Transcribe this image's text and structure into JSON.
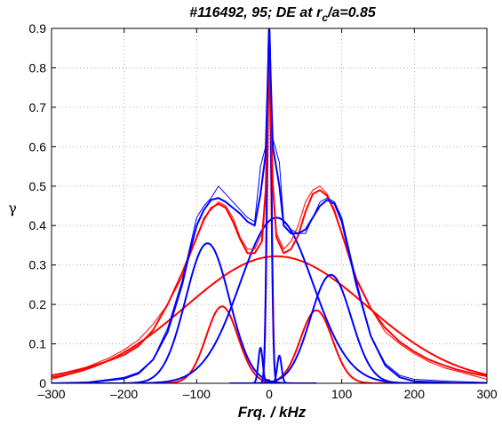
{
  "chart_data": {
    "type": "line",
    "title": "#116492, 95; DE at r",
    "title_sub": "c",
    "title_tail": "/a=0.85",
    "xlabel": "Frq. / kHz",
    "ylabel": "γ",
    "xlim": [
      -300,
      300
    ],
    "ylim": [
      0,
      0.9
    ],
    "grid": true,
    "x_ticks": [
      -300,
      -200,
      -100,
      0,
      100,
      200,
      300
    ],
    "x_tick_labels": [
      "–300",
      "–200",
      "–100",
      "0",
      "100",
      "200",
      "300"
    ],
    "y_ticks": [
      0,
      0.1,
      0.2,
      0.3,
      0.4,
      0.5,
      0.6,
      0.7,
      0.8,
      0.9
    ],
    "y_tick_labels": [
      "0",
      "0.1",
      "0.2",
      "0.3",
      "0.4",
      "0.5",
      "0.6",
      "0.7",
      "0.8",
      "0.9"
    ],
    "colors": {
      "red": "#ff0000",
      "blue": "#0000ff"
    },
    "gaussian_components": [
      {
        "color": "red",
        "amp": 0.322,
        "center": 10,
        "sigma": 125
      },
      {
        "color": "red",
        "amp": 0.195,
        "center": -65,
        "sigma": 22
      },
      {
        "color": "red",
        "amp": 0.185,
        "center": 65,
        "sigma": 22
      },
      {
        "color": "red",
        "amp": 0.79,
        "center": 0,
        "sigma": 3
      },
      {
        "color": "blue",
        "amp": 0.42,
        "center": 10,
        "sigma": 50
      },
      {
        "color": "blue",
        "amp": 0.355,
        "center": -85,
        "sigma": 30
      },
      {
        "color": "blue",
        "amp": 0.275,
        "center": 85,
        "sigma": 28
      },
      {
        "color": "blue",
        "amp": 0.9,
        "center": 0,
        "sigma": 3
      },
      {
        "color": "blue",
        "amp": 0.09,
        "center": -12,
        "sigma": 3
      },
      {
        "color": "blue",
        "amp": 0.07,
        "center": 14,
        "sigma": 3
      }
    ],
    "series": [
      {
        "color": "red",
        "kind": "fit",
        "x": [
          -300,
          -280,
          -260,
          -240,
          -220,
          -200,
          -180,
          -160,
          -140,
          -120,
          -100,
          -90,
          -80,
          -70,
          -60,
          -50,
          -40,
          -30,
          -20,
          -10,
          -5,
          0,
          5,
          10,
          20,
          30,
          40,
          50,
          60,
          70,
          80,
          90,
          100,
          120,
          140,
          160,
          180,
          200,
          220,
          240,
          260,
          280,
          300
        ],
        "y": [
          0.02,
          0.027,
          0.036,
          0.046,
          0.058,
          0.072,
          0.095,
          0.135,
          0.2,
          0.28,
          0.37,
          0.415,
          0.445,
          0.455,
          0.445,
          0.41,
          0.365,
          0.33,
          0.33,
          0.36,
          0.48,
          0.84,
          0.5,
          0.37,
          0.33,
          0.34,
          0.375,
          0.435,
          0.48,
          0.49,
          0.475,
          0.435,
          0.38,
          0.265,
          0.19,
          0.14,
          0.105,
          0.08,
          0.06,
          0.046,
          0.034,
          0.025,
          0.018
        ]
      },
      {
        "color": "red",
        "kind": "measured",
        "x": [
          -300,
          -280,
          -260,
          -240,
          -220,
          -200,
          -180,
          -160,
          -140,
          -120,
          -100,
          -90,
          -80,
          -70,
          -60,
          -50,
          -40,
          -30,
          -20,
          -10,
          -5,
          0,
          5,
          10,
          20,
          30,
          40,
          50,
          60,
          70,
          80,
          90,
          100,
          120,
          140,
          160,
          180,
          200,
          220,
          240,
          260,
          280,
          300
        ],
        "y": [
          0.01,
          0.02,
          0.035,
          0.05,
          0.065,
          0.085,
          0.11,
          0.15,
          0.2,
          0.27,
          0.37,
          0.42,
          0.44,
          0.46,
          0.45,
          0.42,
          0.37,
          0.34,
          0.34,
          0.38,
          0.5,
          0.86,
          0.52,
          0.38,
          0.34,
          0.36,
          0.4,
          0.46,
          0.49,
          0.5,
          0.48,
          0.44,
          0.38,
          0.26,
          0.19,
          0.13,
          0.1,
          0.075,
          0.055,
          0.04,
          0.03,
          0.02,
          0.01
        ]
      },
      {
        "color": "blue",
        "kind": "fit",
        "x": [
          -300,
          -250,
          -200,
          -180,
          -160,
          -140,
          -120,
          -110,
          -100,
          -90,
          -80,
          -70,
          -60,
          -50,
          -40,
          -30,
          -20,
          -12,
          -5,
          0,
          5,
          14,
          20,
          30,
          40,
          50,
          60,
          70,
          80,
          90,
          100,
          110,
          120,
          140,
          160,
          180,
          200,
          250,
          300
        ],
        "y": [
          0,
          0.002,
          0.012,
          0.025,
          0.06,
          0.13,
          0.25,
          0.33,
          0.4,
          0.44,
          0.465,
          0.47,
          0.46,
          0.445,
          0.43,
          0.41,
          0.4,
          0.48,
          0.58,
          0.9,
          0.6,
          0.5,
          0.4,
          0.38,
          0.38,
          0.39,
          0.42,
          0.45,
          0.465,
          0.455,
          0.41,
          0.33,
          0.25,
          0.12,
          0.045,
          0.015,
          0.005,
          0.001,
          0
        ]
      },
      {
        "color": "blue",
        "kind": "measured",
        "x": [
          -300,
          -250,
          -200,
          -180,
          -160,
          -140,
          -120,
          -110,
          -100,
          -90,
          -80,
          -70,
          -60,
          -50,
          -40,
          -30,
          -20,
          -12,
          -5,
          0,
          5,
          14,
          20,
          30,
          40,
          50,
          60,
          70,
          80,
          90,
          100,
          110,
          120,
          140,
          160,
          180,
          200,
          250,
          300
        ],
        "y": [
          0,
          0.003,
          0.015,
          0.028,
          0.06,
          0.14,
          0.26,
          0.34,
          0.42,
          0.45,
          0.47,
          0.5,
          0.48,
          0.46,
          0.44,
          0.42,
          0.41,
          0.55,
          0.6,
          0.9,
          0.62,
          0.56,
          0.41,
          0.39,
          0.38,
          0.38,
          0.42,
          0.46,
          0.47,
          0.46,
          0.42,
          0.34,
          0.26,
          0.12,
          0.05,
          0.02,
          0.01,
          0.005,
          0.002
        ]
      }
    ]
  }
}
